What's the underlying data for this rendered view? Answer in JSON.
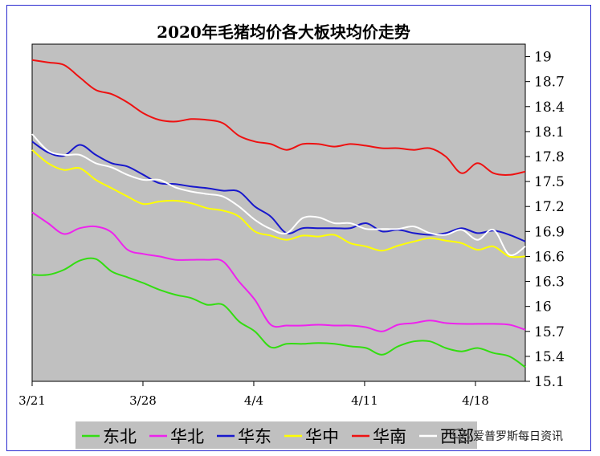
{
  "chart_data": {
    "type": "line",
    "title": "2020年毛猪均价各大板块均价走势",
    "xlabel": "",
    "ylabel": "",
    "x_tick_labels": [
      "3/21",
      "3/28",
      "4/4",
      "4/11",
      "4/18"
    ],
    "y_tick_labels": [
      "19",
      "18.7",
      "18.4",
      "18.1",
      "17.8",
      "17.5",
      "17.2",
      "16.9",
      "16.6",
      "16.3",
      "16",
      "15.7",
      "15.4",
      "15.1"
    ],
    "ylim": [
      15.1,
      19.15
    ],
    "x_range": [
      0,
      31
    ],
    "grid": false,
    "legend_position": "bottom",
    "plot_background": "#c0c0c0",
    "series": [
      {
        "name": "东北",
        "color": "#33dd11",
        "x": [
          0,
          1,
          2,
          3,
          4,
          5,
          6,
          7,
          8,
          9,
          10,
          11,
          12,
          13,
          14,
          15,
          16,
          17,
          18,
          19,
          20,
          21,
          22,
          23,
          24,
          25,
          26,
          27,
          28,
          29,
          30,
          31
        ],
        "values": [
          16.38,
          16.38,
          16.44,
          16.55,
          16.57,
          16.42,
          16.35,
          16.28,
          16.2,
          16.14,
          16.1,
          16.02,
          16.02,
          15.82,
          15.7,
          15.51,
          15.55,
          15.55,
          15.56,
          15.55,
          15.52,
          15.5,
          15.42,
          15.52,
          15.58,
          15.58,
          15.5,
          15.46,
          15.5,
          15.44,
          15.4,
          15.27
        ]
      },
      {
        "name": "华北",
        "color": "#ee22ee",
        "x": [
          0,
          1,
          2,
          3,
          4,
          5,
          6,
          7,
          8,
          9,
          10,
          11,
          12,
          13,
          14,
          15,
          16,
          17,
          18,
          19,
          20,
          21,
          22,
          23,
          24,
          25,
          26,
          27,
          28,
          29,
          30,
          31
        ],
        "values": [
          17.13,
          17.0,
          16.87,
          16.94,
          16.96,
          16.89,
          16.68,
          16.63,
          16.6,
          16.56,
          16.56,
          16.56,
          16.54,
          16.3,
          16.08,
          15.78,
          15.77,
          15.77,
          15.78,
          15.77,
          15.77,
          15.75,
          15.7,
          15.78,
          15.8,
          15.83,
          15.8,
          15.79,
          15.79,
          15.79,
          15.78,
          15.72
        ]
      },
      {
        "name": "华东",
        "color": "#1818cc",
        "x": [
          0,
          1,
          2,
          3,
          4,
          5,
          6,
          7,
          8,
          9,
          10,
          11,
          12,
          13,
          14,
          15,
          16,
          17,
          18,
          19,
          20,
          21,
          22,
          23,
          24,
          25,
          26,
          27,
          28,
          29,
          30,
          31
        ],
        "values": [
          17.98,
          17.85,
          17.81,
          17.94,
          17.82,
          17.72,
          17.68,
          17.58,
          17.48,
          17.47,
          17.44,
          17.42,
          17.39,
          17.38,
          17.2,
          17.08,
          16.88,
          16.94,
          16.94,
          16.94,
          16.94,
          17.0,
          16.9,
          16.92,
          16.88,
          16.86,
          16.88,
          16.94,
          16.88,
          16.91,
          16.86,
          16.78
        ]
      },
      {
        "name": "华中",
        "color": "#ffff00",
        "x": [
          0,
          1,
          2,
          3,
          4,
          5,
          6,
          7,
          8,
          9,
          10,
          11,
          12,
          13,
          14,
          15,
          16,
          17,
          18,
          19,
          20,
          21,
          22,
          23,
          24,
          25,
          26,
          27,
          28,
          29,
          30,
          31
        ],
        "values": [
          17.88,
          17.72,
          17.64,
          17.66,
          17.52,
          17.42,
          17.32,
          17.23,
          17.26,
          17.27,
          17.24,
          17.18,
          17.15,
          17.08,
          16.9,
          16.85,
          16.8,
          16.85,
          16.84,
          16.86,
          16.76,
          16.72,
          16.67,
          16.73,
          16.78,
          16.82,
          16.79,
          16.76,
          16.68,
          16.72,
          16.6,
          16.6
        ]
      },
      {
        "name": "华南",
        "color": "#ee1111",
        "x": [
          0,
          1,
          2,
          3,
          4,
          5,
          6,
          7,
          8,
          9,
          10,
          11,
          12,
          13,
          14,
          15,
          16,
          17,
          18,
          19,
          20,
          21,
          22,
          23,
          24,
          25,
          26,
          27,
          28,
          29,
          30,
          31
        ],
        "values": [
          18.96,
          18.93,
          18.9,
          18.75,
          18.6,
          18.55,
          18.45,
          18.32,
          18.24,
          18.22,
          18.25,
          18.24,
          18.2,
          18.05,
          17.98,
          17.95,
          17.88,
          17.95,
          17.95,
          17.92,
          17.95,
          17.93,
          17.9,
          17.9,
          17.88,
          17.9,
          17.8,
          17.6,
          17.72,
          17.6,
          17.58,
          17.62
        ]
      },
      {
        "name": "西部",
        "color": "#ffffff",
        "x": [
          0,
          1,
          2,
          3,
          4,
          5,
          6,
          7,
          8,
          9,
          10,
          11,
          12,
          13,
          14,
          15,
          16,
          17,
          18,
          19,
          20,
          21,
          22,
          23,
          24,
          25,
          26,
          27,
          28,
          29,
          30,
          31
        ],
        "values": [
          18.07,
          17.87,
          17.82,
          17.82,
          17.72,
          17.67,
          17.58,
          17.52,
          17.52,
          17.43,
          17.38,
          17.35,
          17.32,
          17.2,
          17.04,
          16.93,
          16.88,
          17.06,
          17.07,
          17.0,
          17.0,
          16.93,
          16.93,
          16.93,
          16.96,
          16.88,
          16.86,
          16.92,
          16.8,
          16.92,
          16.62,
          16.72
        ]
      }
    ]
  },
  "watermark": {
    "icon": "wechat-icon",
    "text": "爱普罗斯每日资讯"
  }
}
